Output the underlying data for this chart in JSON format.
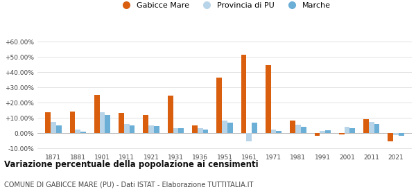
{
  "years": [
    1871,
    1881,
    1901,
    1911,
    1921,
    1931,
    1936,
    1951,
    1961,
    1971,
    1981,
    1991,
    2001,
    2011,
    2021
  ],
  "gabicce": [
    13.5,
    14.0,
    25.0,
    13.0,
    12.0,
    24.5,
    5.0,
    36.5,
    51.5,
    44.5,
    8.0,
    -2.0,
    -1.0,
    9.0,
    -5.5
  ],
  "provincia": [
    7.5,
    2.5,
    13.5,
    6.0,
    5.0,
    3.0,
    3.0,
    8.0,
    -5.5,
    2.5,
    5.5,
    1.5,
    4.0,
    7.5,
    -1.5
  ],
  "marche": [
    5.0,
    1.0,
    12.0,
    5.0,
    4.5,
    3.0,
    2.5,
    7.0,
    7.0,
    1.5,
    4.0,
    2.0,
    3.0,
    6.0,
    -2.0
  ],
  "gabicce_color": "#d95f0e",
  "provincia_color": "#b8d4e8",
  "marche_color": "#6baed6",
  "title": "Variazione percentuale della popolazione ai censimenti",
  "subtitle": "COMUNE DI GABICCE MARE (PU) - Dati ISTAT - Elaborazione TUTTITALIA.IT",
  "ylim": [
    -12,
    67
  ],
  "yticks": [
    -10,
    0,
    10,
    20,
    30,
    40,
    50,
    60
  ],
  "ytick_labels": [
    "-10.00%",
    "0.00%",
    "+10.00%",
    "+20.00%",
    "+30.00%",
    "+40.00%",
    "+50.00%",
    "+60.00%"
  ],
  "legend_labels": [
    "Gabicce Mare",
    "Provincia di PU",
    "Marche"
  ],
  "background_color": "#ffffff",
  "grid_color": "#dddddd"
}
